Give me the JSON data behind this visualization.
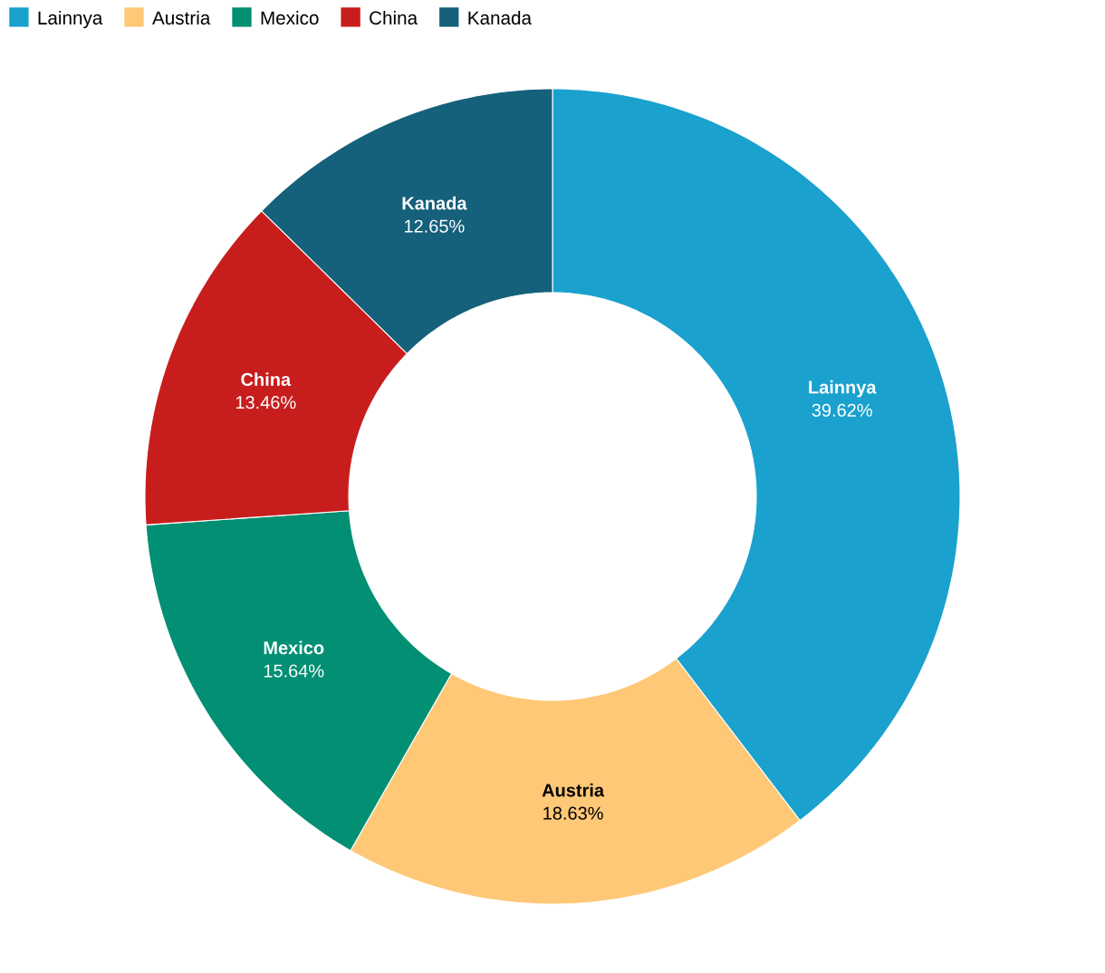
{
  "chart_data": {
    "type": "donut",
    "categories": [
      "Lainnya",
      "Austria",
      "Mexico",
      "China",
      "Kanada"
    ],
    "values": [
      39.62,
      18.63,
      15.64,
      13.46,
      12.65
    ],
    "value_labels": [
      "39.62%",
      "18.63%",
      "15.64%",
      "13.46%",
      "12.65%"
    ],
    "colors": [
      "#1aa1ce",
      "#fec877",
      "#028f73",
      "#c71e1d",
      "#15607a"
    ],
    "legend": "top left"
  }
}
